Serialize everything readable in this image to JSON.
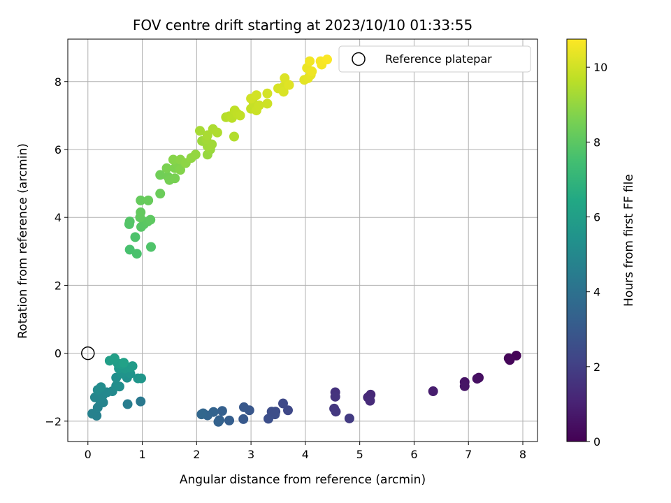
{
  "chart_data": {
    "type": "scatter",
    "title": "FOV centre drift starting at 2023/10/10 01:33:55",
    "xlabel": "Angular distance from reference (arcmin)",
    "ylabel": "Rotation from reference (arcmin)",
    "xlim": [
      -0.37,
      8.27
    ],
    "ylim": [
      -2.6,
      9.25
    ],
    "xticks": [
      0,
      1,
      2,
      3,
      4,
      5,
      6,
      7,
      8
    ],
    "yticks": [
      -2,
      0,
      2,
      4,
      6,
      8
    ],
    "grid": true,
    "legend": {
      "position": "top-right",
      "entries": [
        "Reference platepar"
      ]
    },
    "colorbar": {
      "label": "Hours from first FF file",
      "range": [
        0,
        10.75
      ],
      "ticks": [
        0,
        2,
        4,
        6,
        8,
        10
      ],
      "colormap": "viridis"
    },
    "reference_point": {
      "x": 0,
      "y": 0
    },
    "points": [
      {
        "x": 7.88,
        "y": -0.07,
        "h": 0.05
      },
      {
        "x": 7.74,
        "y": -0.15,
        "h": 0.1
      },
      {
        "x": 7.76,
        "y": -0.2,
        "h": 0.15
      },
      {
        "x": 7.19,
        "y": -0.72,
        "h": 0.4
      },
      {
        "x": 7.16,
        "y": -0.75,
        "h": 0.45
      },
      {
        "x": 6.93,
        "y": -0.85,
        "h": 0.55
      },
      {
        "x": 6.93,
        "y": -0.97,
        "h": 0.6
      },
      {
        "x": 6.35,
        "y": -1.12,
        "h": 0.85
      },
      {
        "x": 5.2,
        "y": -1.22,
        "h": 1.2
      },
      {
        "x": 5.15,
        "y": -1.3,
        "h": 1.25
      },
      {
        "x": 5.19,
        "y": -1.4,
        "h": 1.3
      },
      {
        "x": 4.55,
        "y": -1.15,
        "h": 1.55
      },
      {
        "x": 4.55,
        "y": -1.28,
        "h": 1.6
      },
      {
        "x": 4.53,
        "y": -1.63,
        "h": 1.7
      },
      {
        "x": 4.56,
        "y": -1.72,
        "h": 1.75
      },
      {
        "x": 4.81,
        "y": -1.92,
        "h": 1.85
      },
      {
        "x": 3.68,
        "y": -1.68,
        "h": 2.3
      },
      {
        "x": 3.59,
        "y": -1.48,
        "h": 2.35
      },
      {
        "x": 3.45,
        "y": -1.72,
        "h": 2.45
      },
      {
        "x": 3.38,
        "y": -1.72,
        "h": 2.5
      },
      {
        "x": 3.44,
        "y": -1.8,
        "h": 2.55
      },
      {
        "x": 3.32,
        "y": -1.93,
        "h": 2.6
      },
      {
        "x": 2.97,
        "y": -1.68,
        "h": 2.9
      },
      {
        "x": 2.87,
        "y": -1.59,
        "h": 2.95
      },
      {
        "x": 2.86,
        "y": -1.94,
        "h": 3.0
      },
      {
        "x": 2.6,
        "y": -1.98,
        "h": 3.2
      },
      {
        "x": 2.47,
        "y": -1.7,
        "h": 3.25
      },
      {
        "x": 2.42,
        "y": -1.97,
        "h": 3.3
      },
      {
        "x": 2.4,
        "y": -2.02,
        "h": 3.35
      },
      {
        "x": 2.31,
        "y": -1.73,
        "h": 3.4
      },
      {
        "x": 2.2,
        "y": -1.83,
        "h": 3.45
      },
      {
        "x": 2.12,
        "y": -1.77,
        "h": 3.5
      },
      {
        "x": 2.09,
        "y": -1.8,
        "h": 3.55
      },
      {
        "x": 0.97,
        "y": -1.42,
        "h": 4.3
      },
      {
        "x": 0.73,
        "y": -1.5,
        "h": 4.5
      },
      {
        "x": 0.16,
        "y": -1.84,
        "h": 4.65
      },
      {
        "x": 0.08,
        "y": -1.78,
        "h": 4.7
      },
      {
        "x": 0.18,
        "y": -1.6,
        "h": 4.75
      },
      {
        "x": 0.28,
        "y": -1.45,
        "h": 4.8
      },
      {
        "x": 0.22,
        "y": -1.38,
        "h": 4.85
      },
      {
        "x": 0.13,
        "y": -1.3,
        "h": 4.9
      },
      {
        "x": 0.27,
        "y": -1.25,
        "h": 4.95
      },
      {
        "x": 0.35,
        "y": -1.15,
        "h": 5.0
      },
      {
        "x": 0.45,
        "y": -1.12,
        "h": 5.05
      },
      {
        "x": 0.18,
        "y": -1.08,
        "h": 5.1
      },
      {
        "x": 0.24,
        "y": -1.0,
        "h": 5.15
      },
      {
        "x": 0.52,
        "y": -0.96,
        "h": 5.2
      },
      {
        "x": 0.58,
        "y": -0.98,
        "h": 5.25
      },
      {
        "x": 0.52,
        "y": -0.72,
        "h": 5.3
      },
      {
        "x": 0.72,
        "y": -0.72,
        "h": 5.35
      },
      {
        "x": 0.62,
        "y": -0.6,
        "h": 5.45
      },
      {
        "x": 0.78,
        "y": -0.6,
        "h": 5.5
      },
      {
        "x": 0.92,
        "y": -0.74,
        "h": 5.55
      },
      {
        "x": 0.98,
        "y": -0.74,
        "h": 5.6
      },
      {
        "x": 0.57,
        "y": -0.45,
        "h": 5.7
      },
      {
        "x": 0.68,
        "y": -0.45,
        "h": 5.75
      },
      {
        "x": 0.77,
        "y": -0.42,
        "h": 5.8
      },
      {
        "x": 0.82,
        "y": -0.38,
        "h": 5.85
      },
      {
        "x": 0.62,
        "y": -0.33,
        "h": 5.9
      },
      {
        "x": 0.55,
        "y": -0.3,
        "h": 5.95
      },
      {
        "x": 0.4,
        "y": -0.22,
        "h": 6.0
      },
      {
        "x": 0.49,
        "y": -0.15,
        "h": 6.05
      },
      {
        "x": 0.66,
        "y": -0.28,
        "h": 6.1
      },
      {
        "x": 0.77,
        "y": 3.05,
        "h": 7.6
      },
      {
        "x": 0.9,
        "y": 2.93,
        "h": 7.65
      },
      {
        "x": 0.87,
        "y": 3.42,
        "h": 7.7
      },
      {
        "x": 1.16,
        "y": 3.13,
        "h": 7.75
      },
      {
        "x": 0.76,
        "y": 3.8,
        "h": 7.8
      },
      {
        "x": 0.77,
        "y": 3.88,
        "h": 7.85
      },
      {
        "x": 0.98,
        "y": 3.72,
        "h": 7.9
      },
      {
        "x": 1.03,
        "y": 3.8,
        "h": 7.95
      },
      {
        "x": 1.1,
        "y": 3.88,
        "h": 8.0
      },
      {
        "x": 1.15,
        "y": 3.93,
        "h": 8.05
      },
      {
        "x": 0.96,
        "y": 4.0,
        "h": 8.1
      },
      {
        "x": 0.97,
        "y": 4.15,
        "h": 8.15
      },
      {
        "x": 0.97,
        "y": 4.5,
        "h": 8.2
      },
      {
        "x": 1.11,
        "y": 4.5,
        "h": 8.25
      },
      {
        "x": 1.33,
        "y": 4.7,
        "h": 8.3
      },
      {
        "x": 1.33,
        "y": 5.25,
        "h": 8.4
      },
      {
        "x": 1.47,
        "y": 5.2,
        "h": 8.45
      },
      {
        "x": 1.5,
        "y": 5.1,
        "h": 8.5
      },
      {
        "x": 1.6,
        "y": 5.15,
        "h": 8.55
      },
      {
        "x": 1.45,
        "y": 5.45,
        "h": 8.6
      },
      {
        "x": 1.6,
        "y": 5.45,
        "h": 8.65
      },
      {
        "x": 1.65,
        "y": 5.55,
        "h": 8.7
      },
      {
        "x": 1.7,
        "y": 5.4,
        "h": 8.75
      },
      {
        "x": 1.57,
        "y": 5.7,
        "h": 8.8
      },
      {
        "x": 1.7,
        "y": 5.7,
        "h": 8.85
      },
      {
        "x": 1.8,
        "y": 5.6,
        "h": 8.9
      },
      {
        "x": 1.9,
        "y": 5.75,
        "h": 8.95
      },
      {
        "x": 1.98,
        "y": 5.85,
        "h": 9.0
      },
      {
        "x": 2.2,
        "y": 5.85,
        "h": 9.05
      },
      {
        "x": 2.25,
        "y": 6.0,
        "h": 9.1
      },
      {
        "x": 2.1,
        "y": 6.25,
        "h": 9.15
      },
      {
        "x": 2.2,
        "y": 6.1,
        "h": 9.2
      },
      {
        "x": 2.28,
        "y": 6.15,
        "h": 9.22
      },
      {
        "x": 2.18,
        "y": 6.3,
        "h": 9.25
      },
      {
        "x": 2.06,
        "y": 6.55,
        "h": 9.3
      },
      {
        "x": 2.2,
        "y": 6.42,
        "h": 9.35
      },
      {
        "x": 2.3,
        "y": 6.6,
        "h": 9.4
      },
      {
        "x": 2.38,
        "y": 6.5,
        "h": 9.45
      },
      {
        "x": 2.69,
        "y": 6.38,
        "h": 9.5
      },
      {
        "x": 2.54,
        "y": 6.95,
        "h": 9.55
      },
      {
        "x": 2.6,
        "y": 6.98,
        "h": 9.6
      },
      {
        "x": 2.65,
        "y": 6.93,
        "h": 9.65
      },
      {
        "x": 2.7,
        "y": 7.15,
        "h": 9.7
      },
      {
        "x": 2.75,
        "y": 7.05,
        "h": 9.72
      },
      {
        "x": 2.8,
        "y": 7.0,
        "h": 9.75
      },
      {
        "x": 3.0,
        "y": 7.2,
        "h": 9.8
      },
      {
        "x": 3.05,
        "y": 7.35,
        "h": 9.85
      },
      {
        "x": 3.1,
        "y": 7.15,
        "h": 9.9
      },
      {
        "x": 3.15,
        "y": 7.3,
        "h": 9.92
      },
      {
        "x": 3.3,
        "y": 7.35,
        "h": 9.95
      },
      {
        "x": 3.0,
        "y": 7.5,
        "h": 10.0
      },
      {
        "x": 3.1,
        "y": 7.6,
        "h": 10.02
      },
      {
        "x": 3.3,
        "y": 7.65,
        "h": 10.05
      },
      {
        "x": 3.5,
        "y": 7.8,
        "h": 10.1
      },
      {
        "x": 3.6,
        "y": 7.85,
        "h": 10.12
      },
      {
        "x": 3.6,
        "y": 7.7,
        "h": 10.15
      },
      {
        "x": 3.62,
        "y": 8.1,
        "h": 10.2
      },
      {
        "x": 3.7,
        "y": 7.9,
        "h": 10.25
      },
      {
        "x": 3.98,
        "y": 8.05,
        "h": 10.3
      },
      {
        "x": 4.05,
        "y": 8.1,
        "h": 10.35
      },
      {
        "x": 4.1,
        "y": 8.2,
        "h": 10.4
      },
      {
        "x": 4.03,
        "y": 8.4,
        "h": 10.45
      },
      {
        "x": 4.12,
        "y": 8.3,
        "h": 10.5
      },
      {
        "x": 4.08,
        "y": 8.6,
        "h": 10.55
      },
      {
        "x": 4.3,
        "y": 8.5,
        "h": 10.6
      },
      {
        "x": 4.28,
        "y": 8.6,
        "h": 10.65
      },
      {
        "x": 4.4,
        "y": 8.65,
        "h": 10.7
      }
    ]
  },
  "colors": {
    "grid": "#b0b0b0",
    "reference_marker": "#000000"
  }
}
